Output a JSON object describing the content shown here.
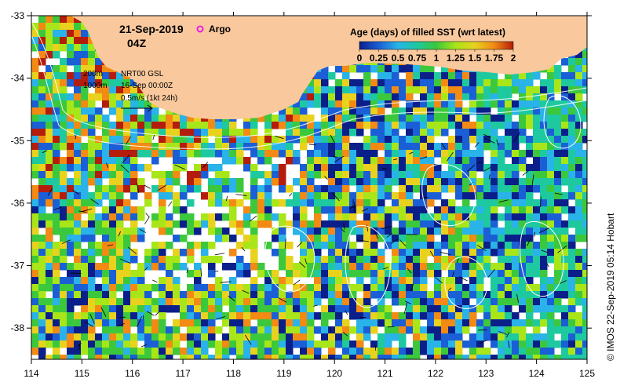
{
  "map": {
    "date": "21-Sep-2019",
    "time": "04Z",
    "argo_label": "Argo",
    "depth_200": "200m",
    "depth_1000": "1000m",
    "product": "NRT00 GSL",
    "product_date": "16-Sep 00:00Z",
    "vector_scale": "0.5m/s (1kt 24h)",
    "credit": "© IMOS 22-Sep-2019 05:14 Hobart",
    "x_ticks": [
      "114",
      "115",
      "116",
      "117",
      "118",
      "119",
      "120",
      "121",
      "122",
      "123",
      "124",
      "125"
    ],
    "y_ticks": [
      "-33",
      "-34",
      "-35",
      "-36",
      "-37",
      "-38"
    ],
    "colorbar": {
      "title": "Age (days) of filled SST (wrt latest)",
      "labels": [
        "0",
        "0.25",
        "0.5",
        "0.75",
        "1",
        "1.25",
        "1.5",
        "1.75",
        "2"
      ]
    },
    "colors": {
      "land": "#f9c89c",
      "c0": "#0b1f8a",
      "c1": "#1a5fd6",
      "c2": "#29b3e8",
      "c3": "#1ec9a0",
      "c4": "#3cc83c",
      "c5": "#a8e619",
      "c6": "#e8d21e",
      "c7": "#f28a14",
      "c8": "#b41c0c"
    }
  }
}
